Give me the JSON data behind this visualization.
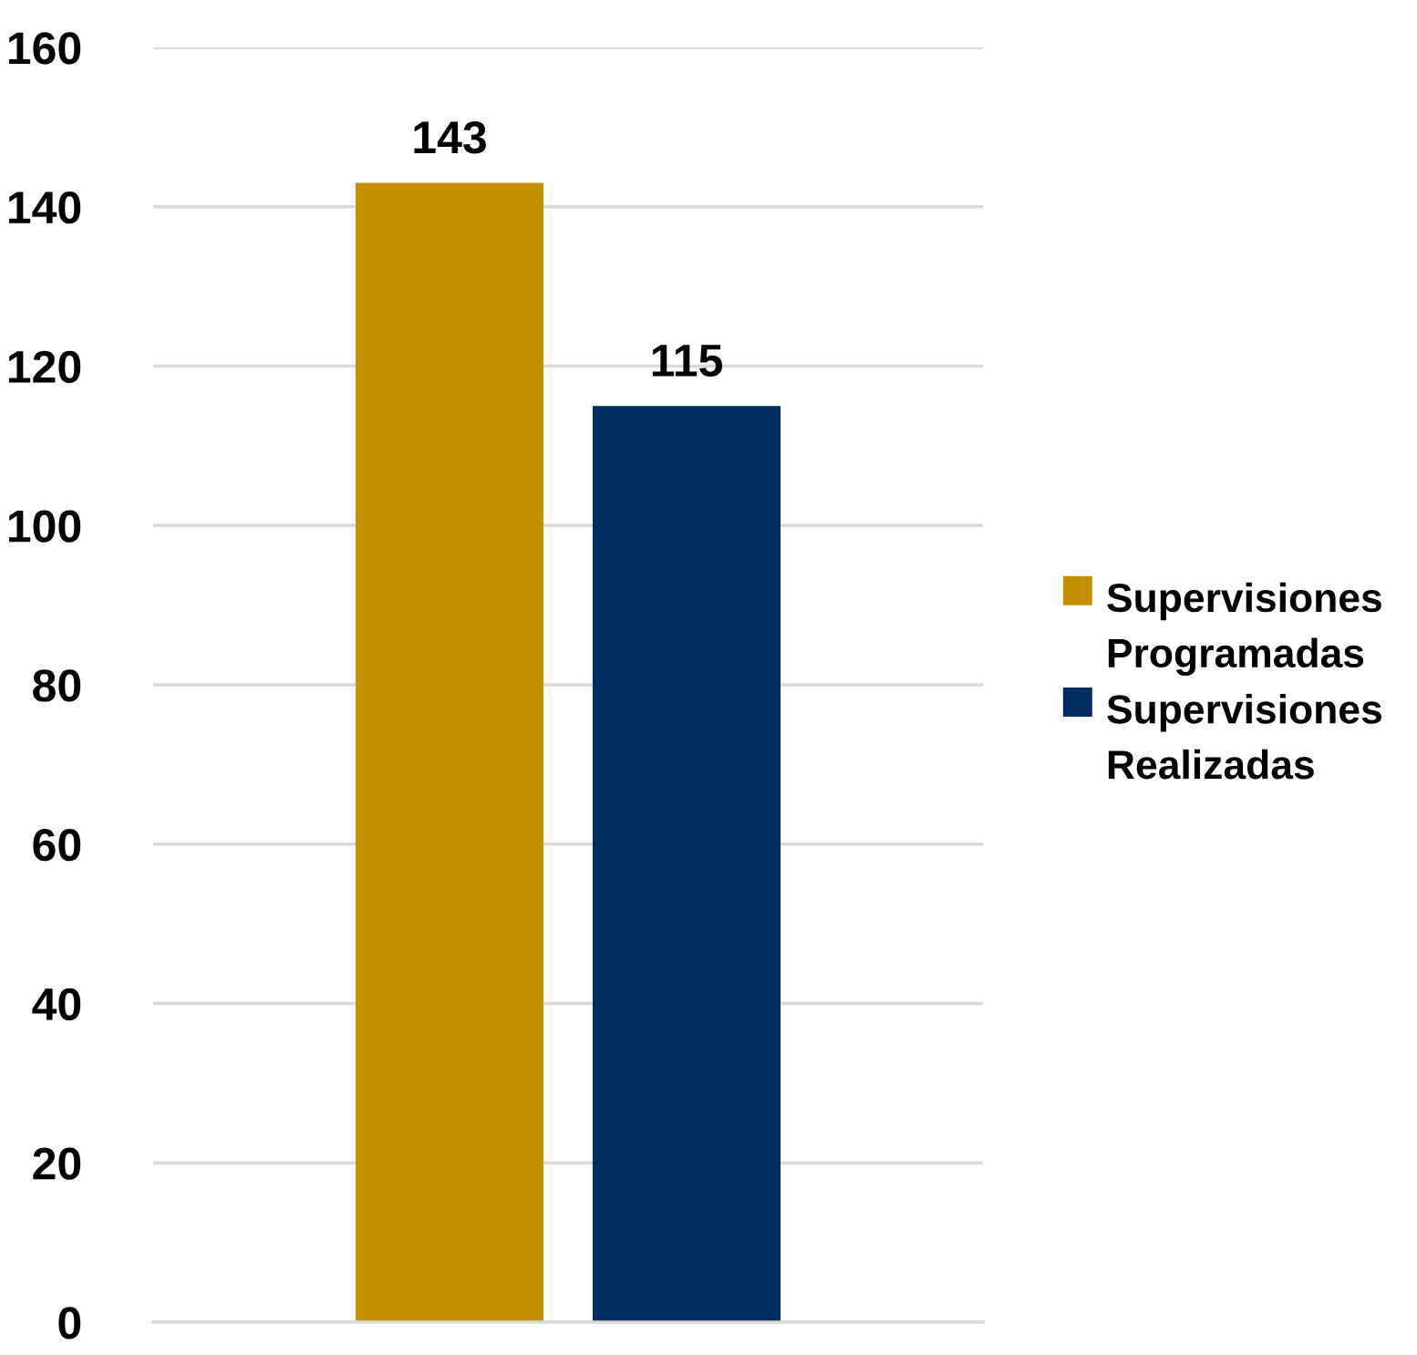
{
  "chart_data": {
    "type": "bar",
    "categories": [
      null
    ],
    "series": [
      {
        "name": "Supervisiones Programadas",
        "color": "#c59000",
        "values": [
          143
        ]
      },
      {
        "name": "Supervisiones Realizadas",
        "color": "#002d62",
        "values": [
          115
        ]
      }
    ],
    "ylim": [
      0,
      160
    ],
    "yticks": [
      0,
      20,
      40,
      60,
      80,
      100,
      120,
      140,
      160
    ],
    "grid": "y",
    "legend": "right",
    "data_labels": true,
    "tick_labels": "y"
  }
}
